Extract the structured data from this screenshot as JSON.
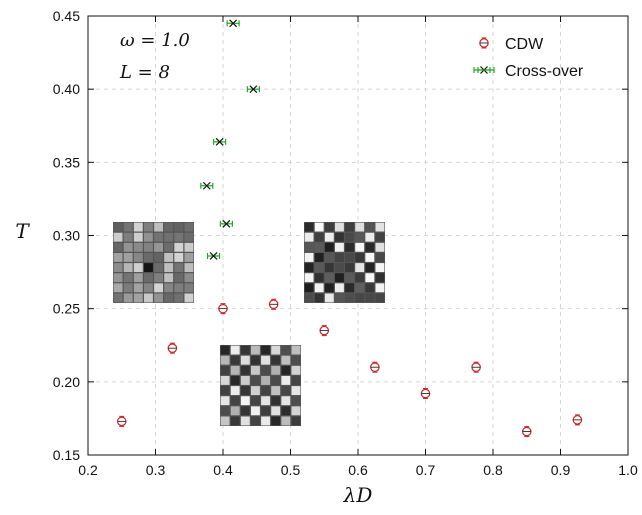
{
  "chart_data": {
    "type": "scatter",
    "xlabel": "λD",
    "ylabel": "T",
    "xlim": [
      0.2,
      1.0
    ],
    "ylim": [
      0.15,
      0.45
    ],
    "x_ticks": [
      "0.2",
      "0.3",
      "0.4",
      "0.5",
      "0.6",
      "0.7",
      "0.8",
      "0.9",
      "1.0"
    ],
    "y_ticks": [
      "0.15",
      "0.20",
      "0.25",
      "0.30",
      "0.35",
      "0.40",
      "0.45"
    ],
    "grid": true,
    "legend_position": "top-right",
    "annotations": [
      "ω = 1.0",
      "L = 8"
    ],
    "series": [
      {
        "name": "CDW",
        "marker": "circle",
        "color": "#cc2222",
        "points": [
          {
            "x": 0.25,
            "y": 0.173
          },
          {
            "x": 0.325,
            "y": 0.223
          },
          {
            "x": 0.4,
            "y": 0.25
          },
          {
            "x": 0.475,
            "y": 0.253
          },
          {
            "x": 0.55,
            "y": 0.235
          },
          {
            "x": 0.625,
            "y": 0.21
          },
          {
            "x": 0.7,
            "y": 0.192
          },
          {
            "x": 0.775,
            "y": 0.21
          },
          {
            "x": 0.85,
            "y": 0.166
          },
          {
            "x": 0.925,
            "y": 0.174
          }
        ]
      },
      {
        "name": "Cross-over",
        "marker": "x",
        "color": "#22aa22",
        "points": [
          {
            "x": 0.386,
            "y": 0.286
          },
          {
            "x": 0.405,
            "y": 0.308
          },
          {
            "x": 0.376,
            "y": 0.334
          },
          {
            "x": 0.395,
            "y": 0.364
          },
          {
            "x": 0.445,
            "y": 0.4
          },
          {
            "x": 0.415,
            "y": 0.445
          }
        ]
      }
    ],
    "insets": [
      {
        "grid_size": 8,
        "pattern": "disordered-light"
      },
      {
        "grid_size": 8,
        "pattern": "partially-ordered"
      },
      {
        "grid_size": 8,
        "pattern": "checkerboard"
      }
    ]
  }
}
